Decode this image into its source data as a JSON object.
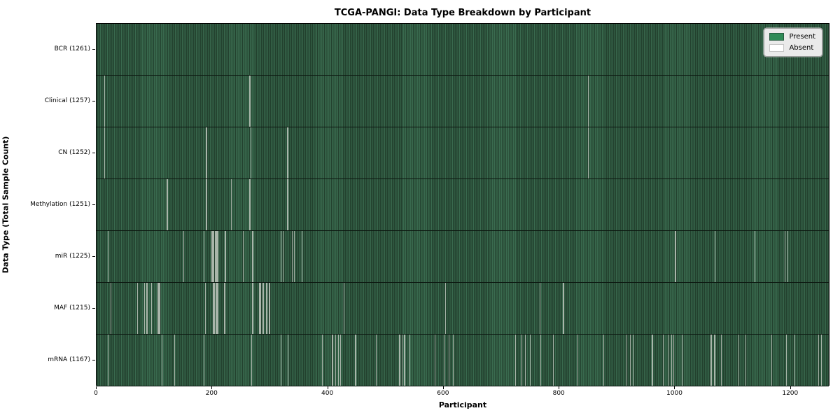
{
  "chart_data": {
    "type": "heatmap",
    "title": "TCGA-PANGI: Data Type Breakdown by Participant",
    "xlabel": "Participant",
    "ylabel": "Data Type (Total Sample Count)",
    "x_ticks": [
      0,
      200,
      400,
      600,
      800,
      1000,
      1200
    ],
    "x_max": 1268,
    "grid": false,
    "legend_position": "upper right",
    "legend": [
      {
        "label": "Present",
        "color": "#2e8b57"
      },
      {
        "label": "Absent",
        "color": "#ffffff"
      }
    ],
    "colors": {
      "present_fill": "#2e8b57",
      "present_stripe_light": "#3a6b4f",
      "present_stripe_dark": "#22402e",
      "absent_line": "#a9b5aa",
      "plot_border": "#000000",
      "legend_bg": "#eaeaea"
    },
    "rows": [
      {
        "name": "BCR",
        "label": "BCR (1261)",
        "total": 1261,
        "absent_segments": []
      },
      {
        "name": "Clinical",
        "label": "Clinical (1257)",
        "total": 1257,
        "absent_segments": [
          [
            13,
            15
          ],
          [
            264,
            266
          ],
          [
            849,
            851
          ]
        ]
      },
      {
        "name": "CN",
        "label": "CN (1252)",
        "total": 1252,
        "absent_segments": [
          [
            13,
            15
          ],
          [
            189,
            191
          ],
          [
            266,
            268
          ],
          [
            329,
            331
          ],
          [
            849,
            851
          ]
        ]
      },
      {
        "name": "Methylation",
        "label": "Methylation (1251)",
        "total": 1251,
        "absent_segments": [
          [
            121,
            123
          ],
          [
            189,
            191
          ],
          [
            232,
            234
          ],
          [
            264,
            266
          ],
          [
            329,
            331
          ]
        ]
      },
      {
        "name": "miR",
        "label": "miR (1225)",
        "total": 1225,
        "absent_segments": [
          [
            19,
            20
          ],
          [
            150,
            151
          ],
          [
            185,
            186
          ],
          [
            199,
            203
          ],
          [
            205,
            210
          ],
          [
            221,
            224
          ],
          [
            253,
            254
          ],
          [
            269,
            270
          ],
          [
            318,
            319
          ],
          [
            322,
            323
          ],
          [
            337,
            339
          ],
          [
            341,
            342
          ],
          [
            354,
            355
          ],
          [
            1000,
            1001
          ],
          [
            1068,
            1069
          ],
          [
            1137,
            1138
          ],
          [
            1189,
            1191
          ],
          [
            1194,
            1196
          ]
        ]
      },
      {
        "name": "MAF",
        "label": "MAF (1215)",
        "total": 1215,
        "absent_segments": [
          [
            24,
            25
          ],
          [
            70,
            71
          ],
          [
            82,
            83
          ],
          [
            86,
            88
          ],
          [
            94,
            95
          ],
          [
            105,
            110
          ],
          [
            187,
            188
          ],
          [
            201,
            204
          ],
          [
            206,
            210
          ],
          [
            220,
            223
          ],
          [
            269,
            270
          ],
          [
            281,
            284
          ],
          [
            287,
            289
          ],
          [
            293,
            295
          ],
          [
            298,
            300
          ],
          [
            427,
            428
          ],
          [
            602,
            603
          ],
          [
            766,
            767
          ],
          [
            806,
            808
          ]
        ]
      },
      {
        "name": "mRNA",
        "label": "mRNA (1167)",
        "total": 1167,
        "absent_segments": [
          [
            19,
            20
          ],
          [
            112,
            113
          ],
          [
            134,
            135
          ],
          [
            185,
            186
          ],
          [
            267,
            268
          ],
          [
            318,
            319
          ],
          [
            330,
            331
          ],
          [
            389,
            390
          ],
          [
            407,
            408
          ],
          [
            412,
            413
          ],
          [
            417,
            418
          ],
          [
            421,
            422
          ],
          [
            447,
            448
          ],
          [
            483,
            484
          ],
          [
            523,
            525
          ],
          [
            527,
            528
          ],
          [
            531,
            533
          ],
          [
            541,
            542
          ],
          [
            584,
            585
          ],
          [
            600,
            601
          ],
          [
            608,
            609
          ],
          [
            616,
            617
          ],
          [
            723,
            724
          ],
          [
            734,
            735
          ],
          [
            740,
            741
          ],
          [
            749,
            750
          ],
          [
            767,
            768
          ],
          [
            789,
            790
          ],
          [
            831,
            832
          ],
          [
            876,
            877
          ],
          [
            916,
            917
          ],
          [
            922,
            923
          ],
          [
            927,
            928
          ],
          [
            960,
            961
          ],
          [
            979,
            980
          ],
          [
            988,
            989
          ],
          [
            993,
            994
          ],
          [
            997,
            998
          ],
          [
            1011,
            1012
          ],
          [
            1061,
            1063
          ],
          [
            1067,
            1069
          ],
          [
            1079,
            1080
          ],
          [
            1109,
            1110
          ],
          [
            1121,
            1122
          ],
          [
            1166,
            1167
          ],
          [
            1192,
            1193
          ],
          [
            1206,
            1207
          ],
          [
            1247,
            1249
          ],
          [
            1252,
            1253
          ]
        ]
      }
    ]
  }
}
